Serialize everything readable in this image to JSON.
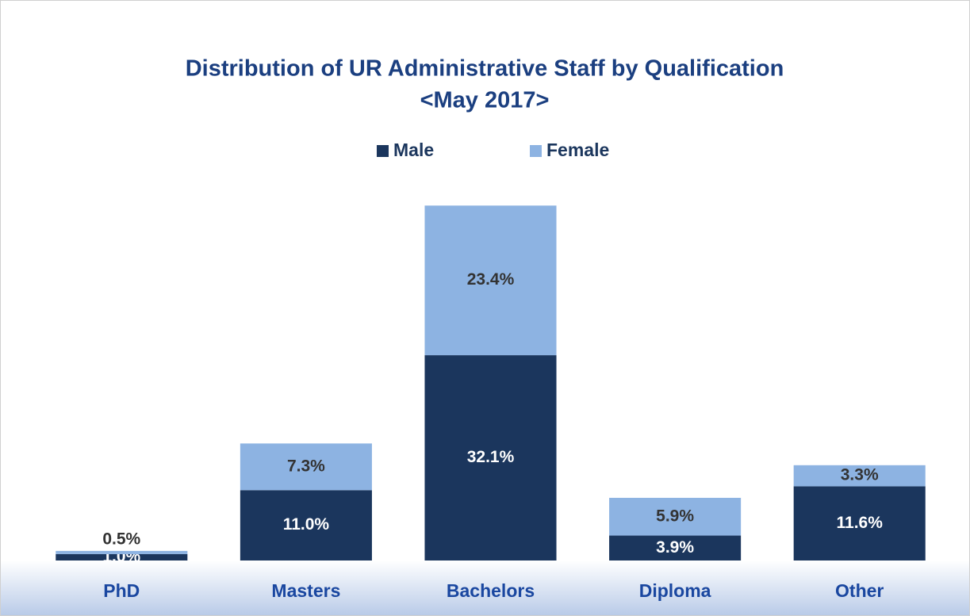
{
  "chart_data": {
    "type": "stacked_bar",
    "title": "Distribution of UR Administrative Staff by Qualification",
    "subtitle": "<May 2017>",
    "categories": [
      "PhD",
      "Masters",
      "Bachelors",
      "Diploma",
      "Other"
    ],
    "series": [
      {
        "name": "Male",
        "color": "#1b365d",
        "values": [
          1.0,
          11.0,
          32.1,
          3.9,
          11.6
        ],
        "value_labels": [
          "1.0%",
          "11.0%",
          "32.1%",
          "3.9%",
          "11.6%"
        ]
      },
      {
        "name": "Female",
        "color": "#8db3e2",
        "values": [
          0.5,
          7.3,
          23.4,
          5.9,
          3.3
        ],
        "value_labels": [
          "0.5%",
          "7.3%",
          "23.4%",
          "5.9%",
          "3.3%"
        ]
      }
    ],
    "ylim": [
      0,
      60
    ],
    "legend": "top"
  }
}
